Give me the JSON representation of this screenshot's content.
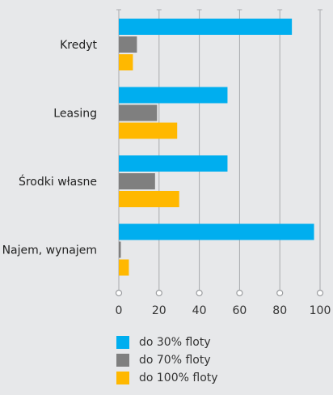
{
  "chart_data": {
    "type": "bar",
    "orientation": "horizontal",
    "categories": [
      "Kredyt",
      "Leasing",
      "Środki własne",
      "Najem, wynajem"
    ],
    "series": [
      {
        "name": "do 30% floty",
        "color": "#00aeef",
        "values": [
          86,
          54,
          54,
          97
        ]
      },
      {
        "name": "do 70% floty",
        "color": "#7f7f7f",
        "values": [
          9,
          19,
          18,
          1
        ]
      },
      {
        "name": "do 100% floty",
        "color": "#ffb800",
        "values": [
          7,
          29,
          30,
          5
        ]
      }
    ],
    "xlim": [
      0,
      100
    ],
    "xticks": [
      "0",
      "20",
      "40",
      "60",
      "80",
      "100"
    ],
    "grid": true,
    "legend_position": "bottom"
  }
}
